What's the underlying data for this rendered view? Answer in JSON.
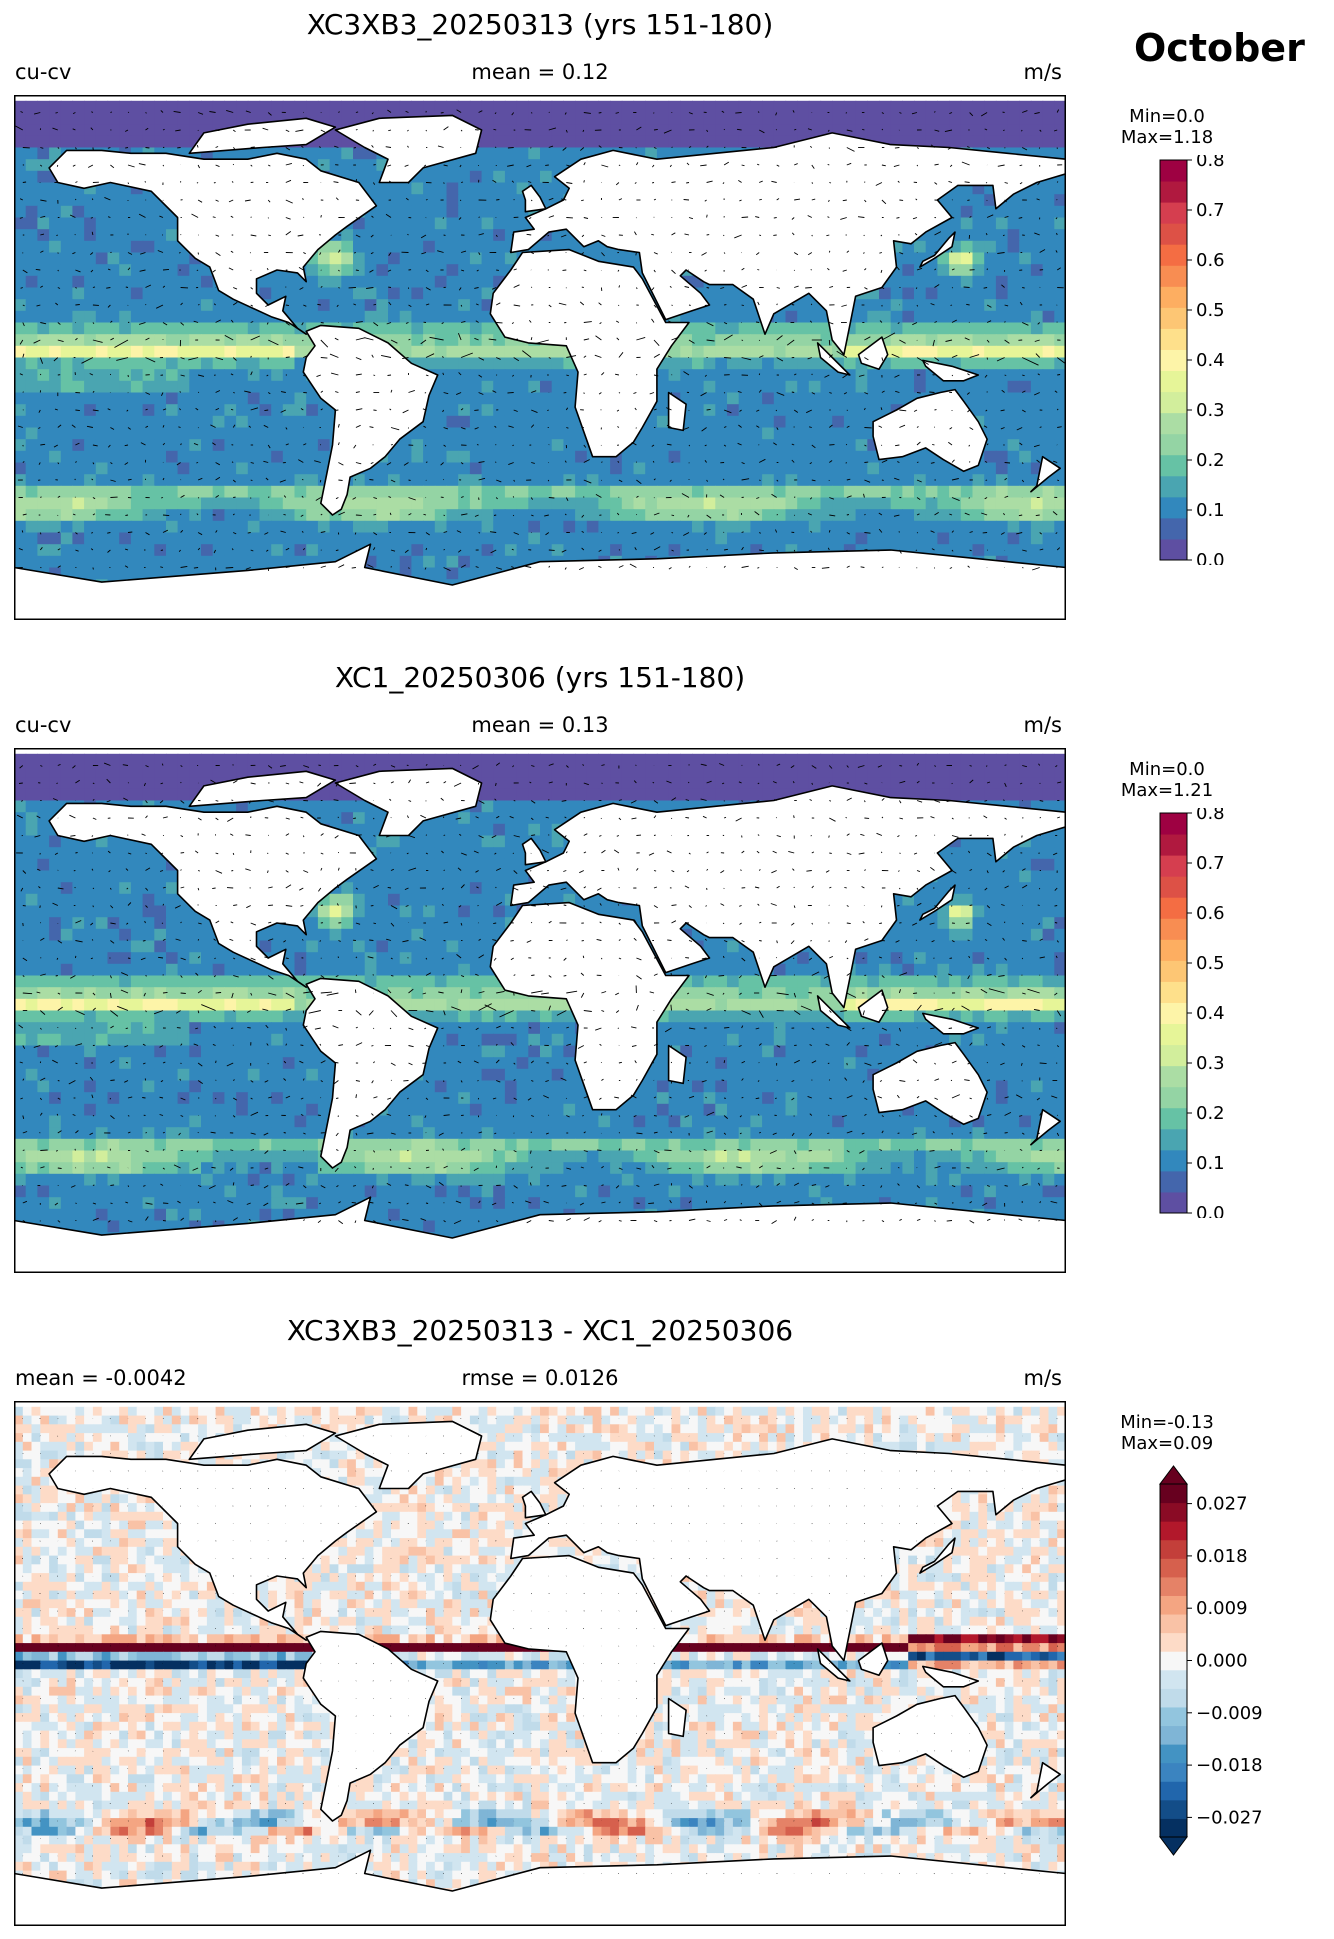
{
  "header": {
    "month": "October"
  },
  "panels": [
    {
      "title": "XC3XB3_20250313 (yrs 151-180)",
      "left": "cu-cv",
      "center": "mean = 0.12",
      "right": "m/s",
      "stats_min": "Min=0.0",
      "stats_max": "Max=1.18",
      "colorbar": {
        "ticks": [
          "0.0",
          "0.1",
          "0.2",
          "0.3",
          "0.4",
          "0.5",
          "0.6",
          "0.7",
          "0.8"
        ],
        "colormap": "Spectral_r",
        "extend": "none"
      }
    },
    {
      "title": "XC1_20250306 (yrs 151-180)",
      "left": "cu-cv",
      "center": "mean = 0.13",
      "right": "m/s",
      "stats_min": "Min=0.0",
      "stats_max": "Max=1.21",
      "colorbar": {
        "ticks": [
          "0.0",
          "0.1",
          "0.2",
          "0.3",
          "0.4",
          "0.5",
          "0.6",
          "0.7",
          "0.8"
        ],
        "colormap": "Spectral_r",
        "extend": "none"
      }
    },
    {
      "title": "XC3XB3_20250313 - XC1_20250306",
      "left": "mean = -0.0042",
      "center": "rmse = 0.0126",
      "right": "m/s",
      "stats_min": "Min=-0.13",
      "stats_max": "Max=0.09",
      "colorbar": {
        "ticks": [
          "−0.027",
          "−0.018",
          "−0.009",
          "0.000",
          "0.009",
          "0.018",
          "0.027"
        ],
        "colormap": "RdBu_r",
        "extend": "both"
      }
    }
  ],
  "chart_data": [
    {
      "type": "heatmap",
      "title": "XC3XB3_20250313 (yrs 151-180)",
      "variable": "cu-cv",
      "units": "m/s",
      "mean": 0.12,
      "min": 0.0,
      "max": 1.18,
      "colorbar_range": [
        0.0,
        0.8
      ],
      "colorbar_ticks": [
        0.0,
        0.1,
        0.2,
        0.3,
        0.4,
        0.5,
        0.6,
        0.7,
        0.8
      ],
      "overlay": "velocity vectors (quiver)"
    },
    {
      "type": "heatmap",
      "title": "XC1_20250306 (yrs 151-180)",
      "variable": "cu-cv",
      "units": "m/s",
      "mean": 0.13,
      "min": 0.0,
      "max": 1.21,
      "colorbar_range": [
        0.0,
        0.8
      ],
      "colorbar_ticks": [
        0.0,
        0.1,
        0.2,
        0.3,
        0.4,
        0.5,
        0.6,
        0.7,
        0.8
      ],
      "overlay": "velocity vectors (quiver)"
    },
    {
      "type": "heatmap",
      "title": "XC3XB3_20250313 - XC1_20250306",
      "units": "m/s",
      "mean": -0.0042,
      "rmse": 0.0126,
      "min": -0.13,
      "max": 0.09,
      "colorbar_range": [
        -0.027,
        0.027
      ],
      "colorbar_ticks": [
        -0.027,
        -0.018,
        -0.009,
        0.0,
        0.009,
        0.018,
        0.027
      ],
      "colorbar_extend": "both"
    }
  ]
}
